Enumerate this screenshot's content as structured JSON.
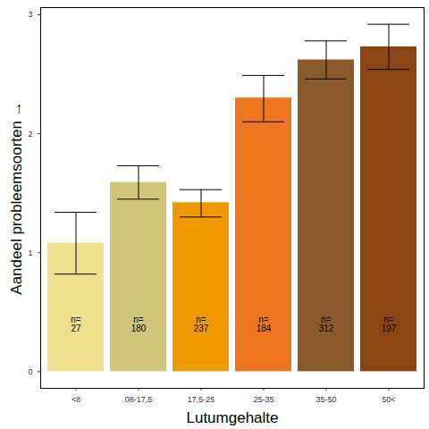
{
  "chart_data": {
    "type": "bar",
    "x_label": "Lutumgehalte",
    "y_label": "Aandeel probleemsoorten",
    "categories": [
      "<8",
      "08-17,5",
      "17,5-25",
      "25-35",
      "35-50",
      "50<"
    ],
    "values": [
      1.08,
      1.59,
      1.42,
      2.3,
      2.62,
      2.73
    ],
    "colors": [
      "#EEE08F",
      "#CFC67A",
      "#EE9A00",
      "#EE7621",
      "#8B5A2B",
      "#8B4513"
    ],
    "error_low": [
      0.82,
      1.45,
      1.3,
      2.1,
      2.46,
      2.54
    ],
    "error_high": [
      1.34,
      1.73,
      1.53,
      2.49,
      2.78,
      2.92
    ],
    "count_prefix": "n=",
    "counts": [
      27,
      180,
      237,
      184,
      312,
      197
    ],
    "ylim": [
      -0.14,
      3.06
    ],
    "yticks": [
      0,
      1,
      2,
      3
    ],
    "grid": false
  }
}
